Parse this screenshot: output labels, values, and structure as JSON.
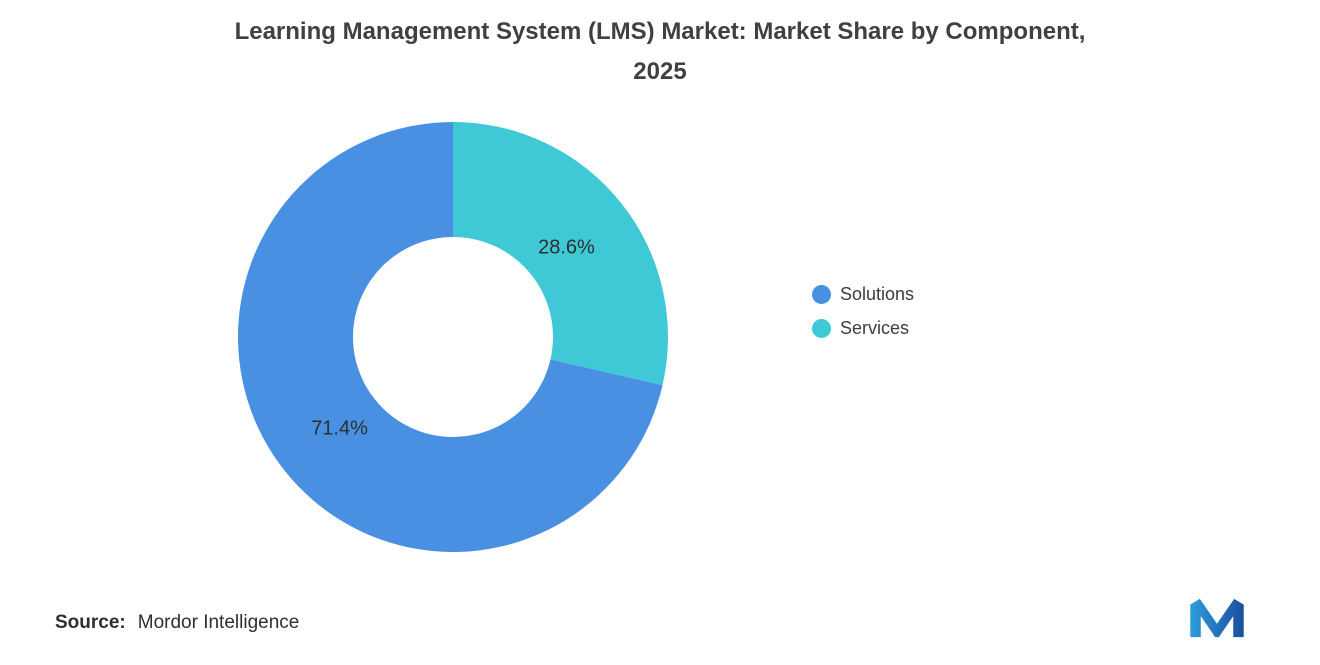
{
  "header": {
    "title_lines": [
      "Learning Management System (LMS) Market: Market Share by Component,",
      "2025"
    ]
  },
  "chart_data": {
    "type": "pie",
    "subtype": "donut",
    "title": "Learning Management System (LMS) Market: Market Share by Component, 2025",
    "unit": "%",
    "series": [
      {
        "name": "Solutions",
        "value": 71.4,
        "label": "71.4%",
        "color": "#4A90E2"
      },
      {
        "name": "Services",
        "value": 28.6,
        "label": "28.6%",
        "color": "#3FC9D6"
      }
    ],
    "legend_position": "right",
    "legend_entries": [
      "Solutions",
      "Services"
    ],
    "start_angle_deg": 0,
    "direction": "clockwise",
    "draw_order_from_top": [
      "Services",
      "Solutions"
    ],
    "inner_radius_ratio": 0.465,
    "grid": false
  },
  "footer": {
    "source_label": "Source:",
    "source_value": "Mordor Intelligence",
    "logo": "mordor-intelligence-logo"
  }
}
